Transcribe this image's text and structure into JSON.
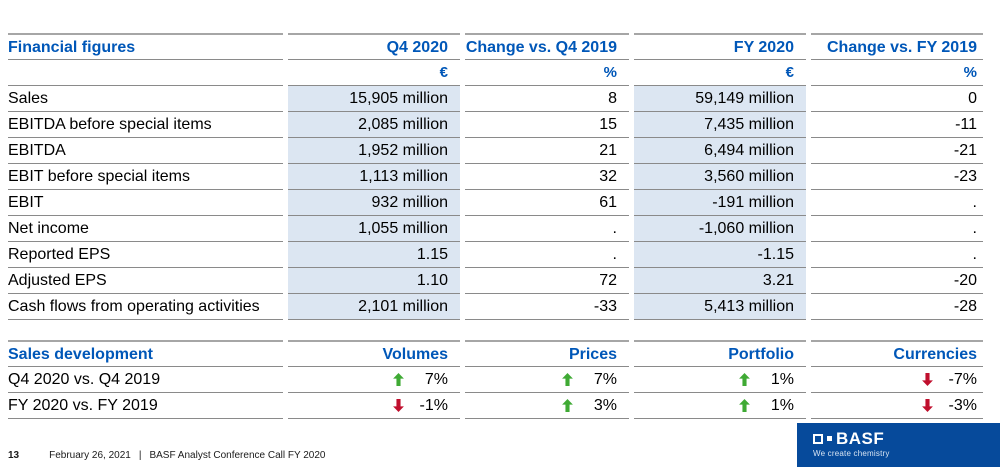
{
  "colors": {
    "accent_blue": "#0057b8",
    "highlight_blue": "#dce6f2",
    "positive_green": "#3faa34",
    "negative_red": "#c00f2d",
    "logo_blue": "#064a9b"
  },
  "financial_table": {
    "title": "Financial figures",
    "columns": [
      "Q4 2020",
      "Change vs. Q4 2019",
      "FY 2020",
      "Change vs. FY 2019"
    ],
    "units": [
      "€",
      "%",
      "€",
      "%"
    ],
    "rows": [
      {
        "label": "Sales",
        "values": [
          "15,905 million",
          "8",
          "59,149 million",
          "0"
        ]
      },
      {
        "label": "EBITDA before special items",
        "values": [
          "2,085 million",
          "15",
          "7,435 million",
          "-11"
        ]
      },
      {
        "label": "EBITDA",
        "values": [
          "1,952 million",
          "21",
          "6,494 million",
          "-21"
        ]
      },
      {
        "label": "EBIT before special items",
        "values": [
          "1,113 million",
          "32",
          "3,560 million",
          "-23"
        ]
      },
      {
        "label": "EBIT",
        "values": [
          "932 million",
          "61",
          "-191 million",
          "."
        ]
      },
      {
        "label": "Net income",
        "values": [
          "1,055 million",
          ".",
          "-1,060 million",
          "."
        ]
      },
      {
        "label": "Reported EPS",
        "values": [
          "1.15",
          ".",
          "-1.15",
          "."
        ]
      },
      {
        "label": "Adjusted EPS",
        "values": [
          "1.10",
          "72",
          "3.21",
          "-20"
        ]
      },
      {
        "label": "Cash flows from operating activities",
        "values": [
          "2,101 million",
          "-33",
          "5,413 million",
          "-28"
        ]
      }
    ]
  },
  "sales_table": {
    "title": "Sales development",
    "columns": [
      "Volumes",
      "Prices",
      "Portfolio",
      "Currencies"
    ],
    "rows": [
      {
        "label": "Q4 2020 vs. Q4 2019",
        "moves": [
          {
            "dir": "up",
            "value": "7%"
          },
          {
            "dir": "up",
            "value": "7%"
          },
          {
            "dir": "up",
            "value": "1%"
          },
          {
            "dir": "down",
            "value": "-7%"
          }
        ]
      },
      {
        "label": "FY 2020 vs. FY 2019",
        "moves": [
          {
            "dir": "down",
            "value": "-1%"
          },
          {
            "dir": "up",
            "value": "3%"
          },
          {
            "dir": "up",
            "value": "1%"
          },
          {
            "dir": "down",
            "value": "-3%"
          }
        ]
      }
    ]
  },
  "footer": {
    "page_number": "13",
    "date": "February 26, 2021",
    "separator": "|",
    "event": "BASF Analyst Conference Call FY 2020"
  },
  "logo": {
    "brand": "BASF",
    "tagline": "We create chemistry"
  }
}
